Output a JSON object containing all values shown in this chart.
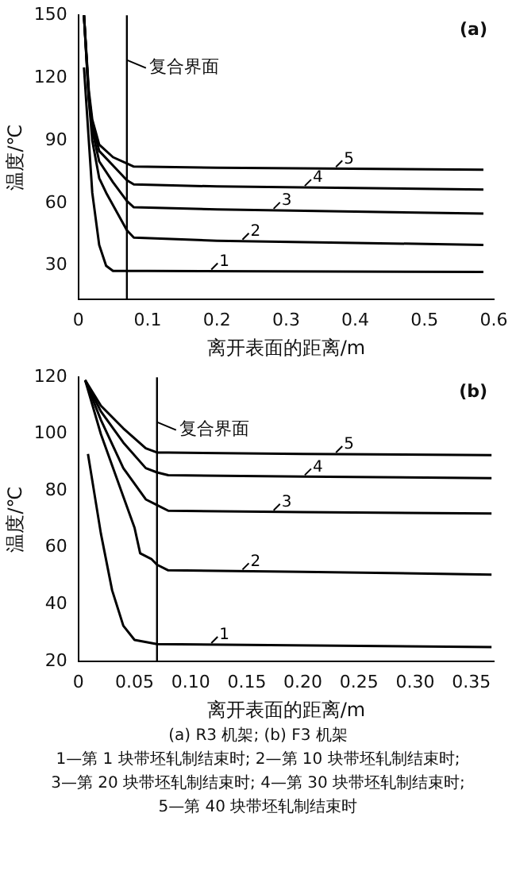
{
  "chart_data": [
    {
      "type": "line",
      "xlabel": "离开表面的距离/m",
      "ylabel": "温度/℃",
      "xlim": [
        0,
        0.6
      ],
      "ylim": [
        14,
        150
      ],
      "xticks": [
        0,
        0.1,
        0.2,
        0.3,
        0.4,
        0.5,
        0.6
      ],
      "yticks": [
        30,
        60,
        90,
        120,
        150
      ],
      "grid": false,
      "legend": "center",
      "marker": "none",
      "line_style": "solid",
      "annotations": [
        "(a)"
      ],
      "ref_lines": [
        {
          "axis": "x",
          "value": 0.07,
          "label": "复合界面",
          "color": "#000000"
        }
      ],
      "series": [
        {
          "name": "1",
          "color": "#000000",
          "x": [
            0.008,
            0.015,
            0.02,
            0.03,
            0.04,
            0.05,
            0.1,
            0.585
          ],
          "values": [
            125,
            90,
            65,
            40,
            30,
            27.5,
            27.5,
            27
          ]
        },
        {
          "name": "2",
          "color": "#000000",
          "x": [
            0.008,
            0.015,
            0.02,
            0.03,
            0.04,
            0.06,
            0.07,
            0.08,
            0.2,
            0.585
          ],
          "values": [
            150,
            110,
            90,
            72,
            65,
            53,
            47,
            43.5,
            42,
            40
          ]
        },
        {
          "name": "3",
          "color": "#000000",
          "x": [
            0.008,
            0.015,
            0.02,
            0.03,
            0.05,
            0.07,
            0.08,
            0.2,
            0.585
          ],
          "values": [
            150,
            110,
            95,
            80,
            70,
            61,
            58,
            57,
            55
          ]
        },
        {
          "name": "4",
          "color": "#000000",
          "x": [
            0.008,
            0.015,
            0.02,
            0.03,
            0.05,
            0.07,
            0.08,
            0.2,
            0.585
          ],
          "values": [
            150,
            112,
            98,
            85,
            78,
            71,
            69,
            68,
            66.5
          ]
        },
        {
          "name": "5",
          "color": "#000000",
          "x": [
            0.008,
            0.015,
            0.02,
            0.03,
            0.05,
            0.07,
            0.08,
            0.2,
            0.585
          ],
          "values": [
            150,
            114,
            100,
            88,
            82,
            79,
            77.5,
            77,
            76
          ]
        }
      ]
    },
    {
      "type": "line",
      "xlabel": "离开表面的距离/m",
      "ylabel": "温度/℃",
      "xlim": [
        0,
        0.37
      ],
      "ylim": [
        20,
        120
      ],
      "xticks": [
        0,
        0.05,
        {
          "value": 0.1,
          "label": "0.10"
        },
        0.15,
        {
          "value": 0.2,
          "label": "0.20"
        },
        0.25,
        {
          "value": 0.3,
          "label": "0.30"
        },
        0.35
      ],
      "yticks": [
        20,
        40,
        60,
        80,
        100,
        120
      ],
      "grid": false,
      "legend": "center",
      "marker": "none",
      "line_style": "solid",
      "annotations": [
        "(b)",
        "(a) R3 机架; (b) F3 机架",
        "1—第 1 块带坯轧制结束时; 2—第 10 块带坯轧制结束时;",
        "3—第 20 块带坯轧制结束时; 4—第 30 块带坯轧制结束时;",
        "5—第 40 块带坯轧制结束时"
      ],
      "ref_lines": [
        {
          "axis": "x",
          "value": 0.07,
          "label": "复合界面",
          "color": "#000000"
        }
      ],
      "series": [
        {
          "name": "1",
          "color": "#000000",
          "x": [
            0.0085,
            0.02,
            0.03,
            0.04,
            0.05,
            0.07,
            0.368
          ],
          "values": [
            93,
            65,
            45,
            32.5,
            27.5,
            26,
            25
          ]
        },
        {
          "name": "2",
          "color": "#000000",
          "x": [
            0.006,
            0.02,
            0.04,
            0.05,
            0.055,
            0.065,
            0.07,
            0.08,
            0.2,
            0.368
          ],
          "values": [
            119,
            100,
            78,
            67,
            58,
            56,
            54,
            52,
            51.5,
            50.5
          ]
        },
        {
          "name": "3",
          "color": "#000000",
          "x": [
            0.006,
            0.02,
            0.04,
            0.06,
            0.07,
            0.08,
            0.2,
            0.368
          ],
          "values": [
            119,
            105,
            88,
            77,
            75,
            73,
            72.5,
            72
          ]
        },
        {
          "name": "4",
          "color": "#000000",
          "x": [
            0.006,
            0.02,
            0.04,
            0.06,
            0.07,
            0.08,
            0.2,
            0.368
          ],
          "values": [
            119,
            108,
            97,
            88,
            86.5,
            85.5,
            85,
            84.5
          ]
        },
        {
          "name": "5",
          "color": "#000000",
          "x": [
            0.006,
            0.02,
            0.04,
            0.06,
            0.07,
            0.08,
            0.2,
            0.368
          ],
          "values": [
            119,
            110,
            102,
            95,
            93.5,
            93.5,
            93,
            92.6
          ]
        }
      ]
    }
  ]
}
